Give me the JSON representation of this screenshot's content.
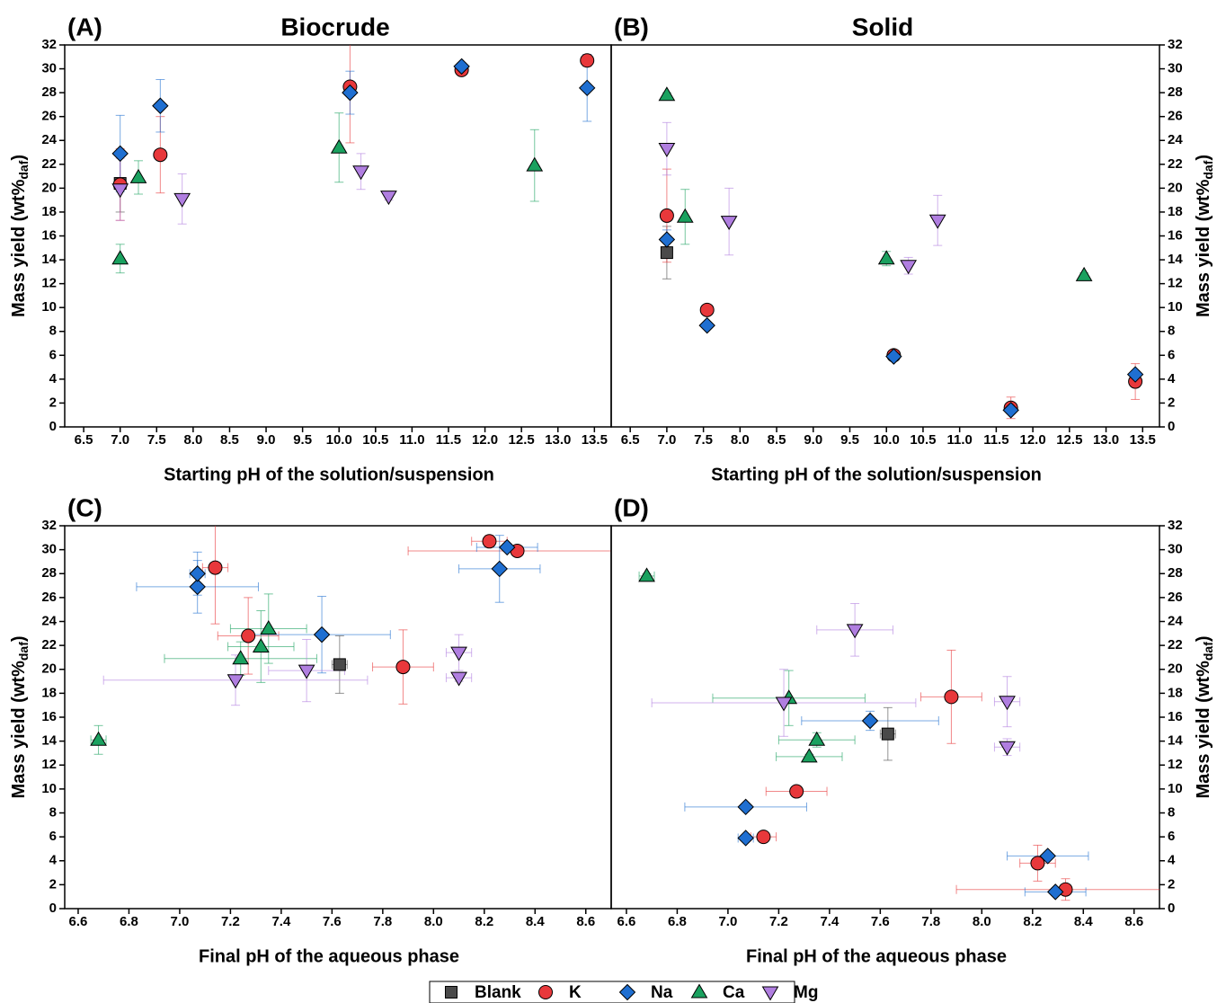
{
  "chart_data": {
    "type": "scatter",
    "ylabel": "Mass yield (wt%",
    "ylabel_sub": "daf",
    "ylabel_end": ")",
    "series": [
      {
        "name": "Blank",
        "color": "#4a4a4a",
        "marker": "square"
      },
      {
        "name": "K",
        "color": "#e8383b",
        "marker": "circle"
      },
      {
        "name": "Na",
        "color": "#1f6fd1",
        "marker": "diamond"
      },
      {
        "name": "Ca",
        "color": "#1aa15f",
        "marker": "triangle-up"
      },
      {
        "name": "Mg",
        "color": "#b07ee0",
        "marker": "triangle-down"
      }
    ],
    "panels": [
      {
        "label": "(A)",
        "title": "Biocrude",
        "xlabel": "Starting pH of the solution/suspension",
        "xlim": [
          6.24,
          13.73
        ],
        "xticks": [
          6.5,
          {
            "value": 7,
            "label": "7.0"
          },
          7.5,
          {
            "value": 8,
            "label": "8.0"
          },
          8.5,
          {
            "value": 9,
            "label": "9.0"
          },
          9.5,
          {
            "value": 10,
            "label": "10.0"
          },
          10.5,
          {
            "value": 11,
            "label": "11.0"
          },
          11.5,
          {
            "value": 12,
            "label": "12.0"
          },
          12.5,
          {
            "value": 13,
            "label": "13.0"
          },
          13.5
        ],
        "ylim": [
          0,
          32
        ],
        "yticks": [
          0,
          2,
          4,
          6,
          8,
          10,
          12,
          14,
          16,
          18,
          20,
          22,
          24,
          26,
          28,
          30,
          32
        ],
        "points": [
          {
            "x": [
              7.0
            ],
            "y": [
              20.4
            ],
            "yerr": [
              2.4
            ]
          },
          {
            "x": [
              7.0,
              7.55,
              10.15,
              11.68,
              13.4
            ],
            "y": [
              20.3,
              22.8,
              28.5,
              29.9,
              30.7
            ],
            "yerr": [
              3.0,
              3.2,
              4.7,
              0.3,
              0.5
            ]
          },
          {
            "x": [
              7.0,
              7.55,
              10.15,
              11.68,
              13.4
            ],
            "y": [
              22.9,
              26.9,
              28.0,
              30.2,
              28.4
            ],
            "yerr": [
              3.2,
              2.2,
              1.8,
              0.3,
              2.8
            ]
          },
          {
            "x": [
              7.0,
              7.25,
              10.0,
              12.68
            ],
            "y": [
              14.1,
              20.9,
              23.4,
              21.9
            ],
            "yerr": [
              1.2,
              1.4,
              2.9,
              3.0
            ]
          },
          {
            "x": [
              7.0,
              7.85,
              10.3,
              10.68
            ],
            "y": [
              19.9,
              19.1,
              21.4,
              19.3
            ],
            "yerr": [
              2.6,
              2.1,
              1.5,
              0.3
            ]
          }
        ]
      },
      {
        "label": "(B)",
        "title": "Solid",
        "xlabel": "Starting pH of the solution/suspension",
        "xlim": [
          6.24,
          13.73
        ],
        "xticks": [
          6.5,
          {
            "value": 7,
            "label": "7.0"
          },
          7.5,
          {
            "value": 8,
            "label": "8.0"
          },
          8.5,
          {
            "value": 9,
            "label": "9.0"
          },
          9.5,
          {
            "value": 10,
            "label": "10.0"
          },
          10.5,
          {
            "value": 11,
            "label": "11.0"
          },
          11.5,
          {
            "value": 12,
            "label": "12.0"
          },
          12.5,
          {
            "value": 13,
            "label": "13.0"
          },
          13.5
        ],
        "ylim": [
          0,
          32
        ],
        "yticks": [
          0,
          2,
          4,
          6,
          8,
          10,
          12,
          14,
          16,
          18,
          20,
          22,
          24,
          26,
          28,
          30,
          32
        ],
        "points": [
          {
            "x": [
              7.0
            ],
            "y": [
              14.6
            ],
            "yerr": [
              2.2
            ]
          },
          {
            "x": [
              7.0,
              7.55,
              10.1,
              11.7,
              13.4
            ],
            "y": [
              17.7,
              9.8,
              6.0,
              1.6,
              3.8
            ],
            "yerr": [
              3.9,
              0.3,
              0.3,
              0.9,
              1.5
            ]
          },
          {
            "x": [
              7.0,
              7.55,
              10.1,
              11.7,
              13.4
            ],
            "y": [
              15.7,
              8.5,
              5.9,
              1.4,
              4.4
            ],
            "yerr": [
              0.8,
              0.2,
              0.2,
              0.3,
              0.3
            ]
          },
          {
            "x": [
              7.0,
              7.25,
              10.0,
              12.7
            ],
            "y": [
              27.8,
              17.6,
              14.1,
              12.7
            ],
            "yerr": [
              0.2,
              2.3,
              0.6,
              0.2
            ]
          },
          {
            "x": [
              7.0,
              7.85,
              10.3,
              10.7
            ],
            "y": [
              23.3,
              17.2,
              13.5,
              17.3
            ],
            "yerr": [
              2.2,
              2.8,
              0.7,
              2.1
            ]
          }
        ]
      },
      {
        "label": "(C)",
        "xlabel": "Final pH of the aqueous phase",
        "xlim": [
          6.547,
          8.7
        ],
        "xticks": [
          6.6,
          6.8,
          {
            "value": 7,
            "label": "7.0"
          },
          7.2,
          7.4,
          7.6,
          7.8,
          {
            "value": 8,
            "label": "8.0"
          },
          8.2,
          8.4,
          8.6
        ],
        "ylim": [
          0,
          32
        ],
        "yticks": [
          0,
          2,
          4,
          6,
          8,
          10,
          12,
          14,
          16,
          18,
          20,
          22,
          24,
          26,
          28,
          30,
          32
        ],
        "points": [
          {
            "x": [
              7.63
            ],
            "y": [
              20.4
            ],
            "xerr": [
              0.03
            ],
            "yerr": [
              2.4
            ]
          },
          {
            "x": [
              7.88,
              7.27,
              7.14,
              8.33,
              8.22
            ],
            "y": [
              20.2,
              22.8,
              28.5,
              29.9,
              30.7
            ],
            "xerr": [
              0.12,
              0.12,
              0.05,
              0.43,
              0.07
            ],
            "yerr": [
              3.1,
              3.2,
              4.7,
              0.3,
              0.5
            ]
          },
          {
            "x": [
              7.56,
              7.07,
              7.07,
              8.29,
              8.26
            ],
            "y": [
              22.9,
              26.9,
              28.0,
              30.2,
              28.4
            ],
            "xerr": [
              0.27,
              0.24,
              0.03,
              0.12,
              0.16
            ],
            "yerr": [
              3.2,
              2.2,
              1.8,
              0.3,
              2.8
            ]
          },
          {
            "x": [
              6.68,
              7.24,
              7.35,
              7.32
            ],
            "y": [
              14.1,
              20.9,
              23.4,
              21.9
            ],
            "xerr": [
              0.03,
              0.3,
              0.15,
              0.13
            ],
            "yerr": [
              1.2,
              1.4,
              2.9,
              3.0
            ]
          },
          {
            "x": [
              7.5,
              7.22,
              8.1,
              8.1
            ],
            "y": [
              19.9,
              19.1,
              21.4,
              19.3
            ],
            "xerr": [
              0.15,
              0.52,
              0.05,
              0.05
            ],
            "yerr": [
              2.6,
              2.1,
              1.5,
              0.3
            ]
          }
        ]
      },
      {
        "label": "(D)",
        "xlabel": "Final pH of the aqueous phase",
        "xlim": [
          6.54,
          8.7
        ],
        "xticks": [
          6.6,
          6.8,
          {
            "value": 7,
            "label": "7.0"
          },
          7.2,
          7.4,
          7.6,
          7.8,
          {
            "value": 8,
            "label": "8.0"
          },
          8.2,
          8.4,
          8.6
        ],
        "ylim": [
          0,
          32
        ],
        "yticks": [
          0,
          2,
          4,
          6,
          8,
          10,
          12,
          14,
          16,
          18,
          20,
          22,
          24,
          26,
          28,
          30,
          32
        ],
        "points": [
          {
            "x": [
              7.63
            ],
            "y": [
              14.6
            ],
            "xerr": [
              0.03
            ],
            "yerr": [
              2.2
            ]
          },
          {
            "x": [
              7.88,
              7.27,
              7.14,
              8.33,
              8.22
            ],
            "y": [
              17.7,
              9.8,
              6.0,
              1.6,
              3.8
            ],
            "xerr": [
              0.12,
              0.12,
              0.05,
              0.43,
              0.07
            ],
            "yerr": [
              3.9,
              0.3,
              0.3,
              0.9,
              1.5
            ]
          },
          {
            "x": [
              7.56,
              7.07,
              7.07,
              8.29,
              8.26
            ],
            "y": [
              15.7,
              8.5,
              5.9,
              1.4,
              4.4
            ],
            "xerr": [
              0.27,
              0.24,
              0.03,
              0.12,
              0.16
            ],
            "yerr": [
              0.8,
              0.2,
              0.2,
              0.3,
              0.3
            ]
          },
          {
            "x": [
              6.68,
              7.24,
              7.35,
              7.32
            ],
            "y": [
              27.8,
              17.6,
              14.1,
              12.7
            ],
            "xerr": [
              0.03,
              0.3,
              0.15,
              0.13
            ],
            "yerr": [
              0.2,
              2.3,
              0.6,
              0.2
            ]
          },
          {
            "x": [
              7.5,
              7.22,
              8.1,
              8.1
            ],
            "y": [
              23.3,
              17.2,
              13.5,
              17.3
            ],
            "xerr": [
              0.15,
              0.52,
              0.05,
              0.05
            ],
            "yerr": [
              2.2,
              2.8,
              0.7,
              2.1
            ]
          }
        ]
      }
    ]
  }
}
